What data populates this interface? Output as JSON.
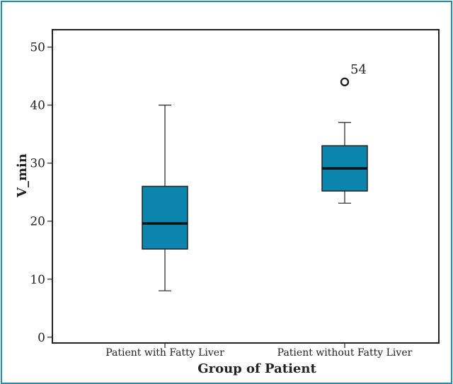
{
  "chart_data": {
    "type": "boxplot",
    "title": "",
    "xlabel": "Group of Patient",
    "ylabel": "V_min",
    "ylim": [
      -1,
      53
    ],
    "yticks": [
      0,
      10,
      20,
      30,
      40,
      50
    ],
    "grid": false,
    "legend": "none",
    "box_color": "#0b85ad",
    "categories": [
      "Patient with Fatty Liver",
      "Patient without Fatty Liver"
    ],
    "boxes": [
      {
        "category": "Patient with Fatty Liver",
        "whisker_low": 8,
        "q1": 15.2,
        "median": 19.6,
        "q3": 26,
        "whisker_high": 40,
        "outliers": []
      },
      {
        "category": "Patient without Fatty Liver",
        "whisker_low": 23.1,
        "q1": 25.2,
        "median": 29.1,
        "q3": 33,
        "whisker_high": 37,
        "outliers": [
          {
            "value": 44,
            "label": "54"
          }
        ]
      }
    ]
  }
}
